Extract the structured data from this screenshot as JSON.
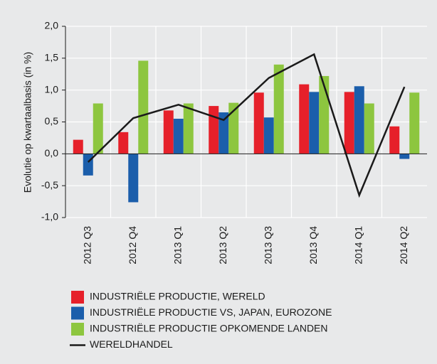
{
  "chart_data": {
    "type": "bar",
    "y_label": "Evolutie op kwartaalbasis (in %)",
    "categories": [
      "2012 Q3",
      "2012 Q4",
      "2013 Q1",
      "2013 Q2",
      "2013 Q3",
      "2013 Q4",
      "2014 Q1",
      "2014 Q2"
    ],
    "series": [
      {
        "name": "INDUSTRIËLE PRODUCTIE, WERELD",
        "color": "#e6202a",
        "values": [
          0.22,
          0.34,
          0.68,
          0.75,
          0.96,
          1.09,
          0.97,
          0.43
        ]
      },
      {
        "name": "INDUSTRIËLE PRODUCTIE VS, JAPAN, EUROZONE",
        "color": "#1b5eab",
        "values": [
          -0.34,
          -0.76,
          0.55,
          0.65,
          0.57,
          0.97,
          1.06,
          -0.08
        ]
      },
      {
        "name": "INDUSTRIËLE PRODUCTIE OPKOMENDE LANDEN",
        "color": "#8dc63f",
        "values": [
          0.79,
          1.46,
          0.79,
          0.8,
          1.4,
          1.22,
          0.79,
          0.96
        ]
      },
      {
        "name": "WERELDHANDEL",
        "color": "#1a1a1a",
        "type": "line",
        "values": [
          -0.13,
          0.56,
          0.77,
          0.53,
          1.19,
          1.56,
          -0.65,
          1.05
        ]
      }
    ],
    "ylim": [
      -1,
      2
    ],
    "yticks": [
      {
        "value": -1,
        "label": "-1,0"
      },
      {
        "value": -0.5,
        "label": "-0,5"
      },
      {
        "value": 0,
        "label": "0,0"
      },
      {
        "value": 0.5,
        "label": "0,5"
      },
      {
        "value": 1,
        "label": "1,0"
      },
      {
        "value": 1.5,
        "label": "1,5"
      },
      {
        "value": 2,
        "label": "2,0"
      }
    ],
    "grid": true
  }
}
